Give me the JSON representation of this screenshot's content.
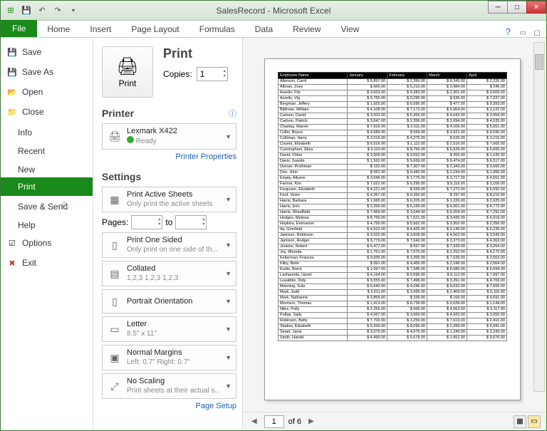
{
  "window": {
    "title": "SalesRecord - Microsoft Excel"
  },
  "tabs": [
    "File",
    "Home",
    "Insert",
    "Page Layout",
    "Formulas",
    "Data",
    "Review",
    "View"
  ],
  "nav": {
    "save": "Save",
    "saveas": "Save As",
    "open": "Open",
    "close": "Close",
    "info": "Info",
    "recent": "Recent",
    "new": "New",
    "print": "Print",
    "savesend": "Save & Send",
    "help": "Help",
    "options": "Options",
    "exit": "Exit"
  },
  "print": {
    "heading": "Print",
    "button": "Print",
    "copies_label": "Copies:",
    "copies_value": "1",
    "printer_h": "Printer",
    "printer_name": "Lexmark X422",
    "printer_status": "Ready",
    "printer_props": "Printer Properties",
    "settings_h": "Settings",
    "active_t": "Print Active Sheets",
    "active_s": "Only print the active sheets",
    "pages_label": "Pages:",
    "pages_to": "to",
    "sided_t": "Print One Sided",
    "sided_s": "Only print on one side of th...",
    "collated_t": "Collated",
    "collated_s": "1,2,3   1,2,3   1,2,3",
    "orient_t": "Portrait Orientation",
    "paper_t": "Letter",
    "paper_s": "8.5\" x 11\"",
    "margins_t": "Normal Margins",
    "margins_s": "Left: 0.7\"   Right: 0.7\"",
    "scale_t": "No Scaling",
    "scale_s": "Print sheets at their actual s...",
    "page_setup": "Page Setup"
  },
  "preview": {
    "page_current": "1",
    "page_total": "of 6",
    "columns": [
      "Employee Name",
      "January",
      "February",
      "March",
      "April"
    ],
    "rows": [
      [
        "Allenson, Carol",
        "$ 5,897.00",
        "$ 2,356.00",
        "$ 9,345.00",
        "$ 2,226.00"
      ],
      [
        "Altman, Zoey",
        "$ 666.00",
        "$ 6,210.00",
        "$ 3,984.00",
        "$ 246.00"
      ],
      [
        "Aurelio, Fitz",
        "$ 3,653.00",
        "$ 9,383.00",
        "$ 2,301.00",
        "$ 3,609.00"
      ],
      [
        "Aurelio, Vig",
        "$ 6,765.00",
        "$ 9,295.00",
        "$ 636.00",
        "$ 7,037.00"
      ],
      [
        "Bergman, Jeffery",
        "$ 1,925.00",
        "$ 6,595.00",
        "$ 477.00",
        "$ 9,393.00"
      ],
      [
        "Bittiman, William",
        "$ 4,108.00",
        "$ 7,172.00",
        "$ 6,964.00",
        "$ 2,122.00"
      ],
      [
        "Carlson, David",
        "$ 3,002.00",
        "$ 6,365.00",
        "$ 4,642.00",
        "$ 3,954.00"
      ],
      [
        "Carlson, Patrick",
        "$ 3,647.00",
        "$ 2,356.00",
        "$ 2,694.00",
        "$ 4,535.00"
      ],
      [
        "Chantay, Marvin",
        "$ 7,916.00",
        "$ 2,611.00",
        "$ 4,106.00",
        "$ 5,651.00"
      ],
      [
        "Collin, Boyce",
        "$ 4,689.00",
        "$ 559.00",
        "$ 3,921.00",
        "$ 9,595.00"
      ],
      [
        "Colliman, Harry",
        "$ 3,016.00",
        "$ 4,375.00",
        "$ 626.00",
        "$ 3,215.00"
      ],
      [
        "Counts, Elizabeth",
        "$ 6,516.00",
        "$ 1,112.00",
        "$ 2,516.00",
        "$ 7,665.00"
      ],
      [
        "Cunningham, Eliza",
        "$ 3,110.00",
        "$ 8,756.00",
        "$ 6,529.00",
        "$ 5,655.00"
      ],
      [
        "David, Chloe",
        "$ 3,009.00",
        "$ 3,552.00",
        "$ 266.00",
        "$ 1,195.00"
      ],
      [
        "Davis, Juanita",
        "$ 1,562.00",
        "$ 9,669.00",
        "$ 9,474.00",
        "$ 6,517.00"
      ],
      [
        "Denver, Prothman",
        "$ 162.00",
        "$ 7,307.00",
        "$ 2,343.00",
        "$ 3,660.00"
      ],
      [
        "Doe, John",
        "$ 562.00",
        "$ 9,442.00",
        "$ 2,234.00",
        "$ 1,956.00"
      ],
      [
        "Empty, Allyson",
        "$ 3,645.00",
        "$ 1,776.00",
        "$ 3,717.00",
        "$ 4,551.00"
      ],
      [
        "Farmor, Kim",
        "$ 7,022.00",
        "$ 6,295.00",
        "$ 9,116.00",
        "$ 3,106.00"
      ],
      [
        "Ferguson, Elizabeth",
        "$ 4,221.00",
        "$ 939.00",
        "$ 7,272.00",
        "$ 6,592.00"
      ],
      [
        "Ford, Victor",
        "$ 4,267.00",
        "$ 9,350.00",
        "$ 297.00",
        "$ 8,210.00"
      ],
      [
        "Harris, Barbara",
        "$ 1,065.00",
        "$ 6,205.00",
        "$ 1,226.00",
        "$ 2,025.00"
      ],
      [
        "Harris, Erin",
        "$ 2,256.00",
        "$ 6,169.00",
        "$ 4,001.00",
        "$ 4,772.00"
      ],
      [
        "Harris, Woodfield",
        "$ 7,969.00",
        "$ 3,644.00",
        "$ 9,204.00",
        "$ 7,291.00"
      ],
      [
        "Hodges, Melissa",
        "$ 8,765.00",
        "$ 7,621.00",
        "$ 3,435.00",
        "$ 6,019.00"
      ],
      [
        "Hopkins, Emmanon",
        "$ 4,750.00",
        "$ 5,562.00",
        "$ 3,952.00",
        "$ 2,356.00"
      ],
      [
        "Ita, Grimfield",
        "$ 4,522.00",
        "$ 4,425.00",
        "$ 3,140.00",
        "$ 6,235.00"
      ],
      [
        "Jamison, Robinson",
        "$ 3,022.00",
        "$ 3,609.00",
        "$ 4,562.00",
        "$ 3,543.00"
      ],
      [
        "Jamison, Rodger",
        "$ 9,779.00",
        "$ 7,042.00",
        "$ 3,373.00",
        "$ 4,363.00"
      ],
      [
        "Jenkins, Robert",
        "$ 6,477.00",
        "$ 657.00",
        "$ 7,939.00",
        "$ 3,204.00"
      ],
      [
        "Joy, Rhonda",
        "$ 1,761.00",
        "$ 7,075.00",
        "$ 2,252.00",
        "$ 4,172.00"
      ],
      [
        "Kellerman, Frances",
        "$ 9,935.00",
        "$ 3,365.00",
        "$ 7,639.00",
        "$ 3,553.00"
      ],
      [
        "Kilby, Belle",
        "$ 991.00",
        "$ 4,465.00",
        "$ 2,246.00",
        "$ 2,564.00"
      ],
      [
        "Kurtis, Boich",
        "$ 1,597.00",
        "$ 7,345.00",
        "$ 8,680.00",
        "$ 6,594.00"
      ],
      [
        "Lashaunda, Upset",
        "$ 4,164.00",
        "$ 5,596.00",
        "$ 8,112.00",
        "$ 7,697.00"
      ],
      [
        "Lusabbio, Didy",
        "$ 9,555.00",
        "$ 7,496.00",
        "$ 3,391.00",
        "$ 4,769.00"
      ],
      [
        "Manning, Sula",
        "$ 6,640.00",
        "$ 4,046.00",
        "$ 9,632.00",
        "$ 7,605.00"
      ],
      [
        "Mark, Judd",
        "$ 3,611.00",
        "$ 3,435.00",
        "$ 2,469.00",
        "$ 5,116.00"
      ],
      [
        "Mark, Nathanne",
        "$ 3,865.00",
        "$ 339.00",
        "$ 166.00",
        "$ 9,691.00"
      ],
      [
        "Morrison, Thomas",
        "$ 1,413.00",
        "$ 8,739.00",
        "$ 9,039.00",
        "$ 1,144.00"
      ],
      [
        "Niles, Polly",
        "$ 2,256.00",
        "$ 666.00",
        "$ 4,563.00",
        "$ 3,117.00"
      ],
      [
        "Polbar, Sally",
        "$ 4,067.00",
        "$ 3,969.00",
        "$ 4,920.00",
        "$ 3,055.00"
      ],
      [
        "Robinson, Betty",
        "$ 7,700.00",
        "$ 1,259.00",
        "$ 7,619.00",
        "$ 2,410.00"
      ],
      [
        "Sladow, Elizabeth",
        "$ 6,939.00",
        "$ 8,096.00",
        "$ 2,399.00",
        "$ 6,941.00"
      ],
      [
        "Smart, Janis",
        "$ 3,079.00",
        "$ 4,075.00",
        "$ 1,240.00",
        "$ 2,243.00"
      ],
      [
        "Smith, Harold",
        "$ 4,490.00",
        "$ 6,579.00",
        "$ 1,952.00",
        "$ 9,076.00"
      ]
    ]
  }
}
